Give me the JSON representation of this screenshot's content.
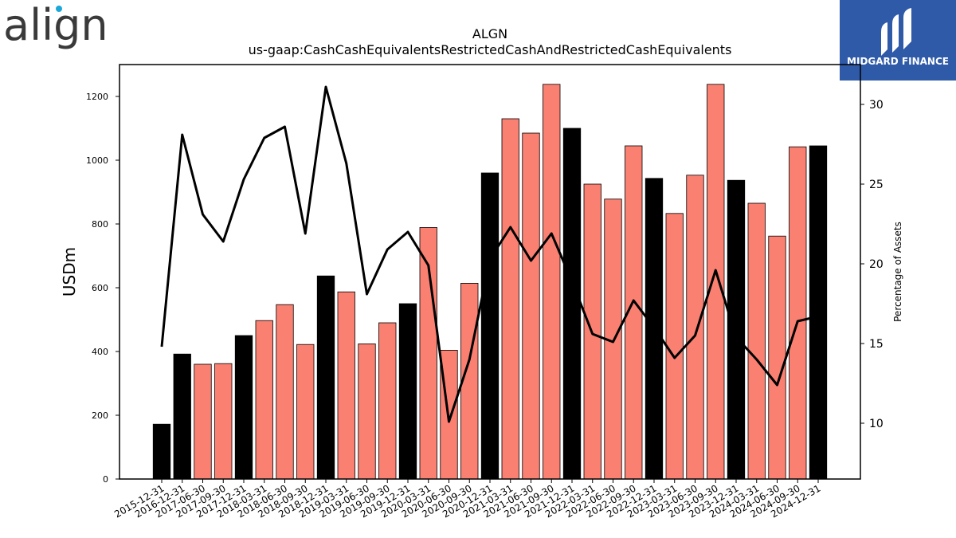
{
  "brand": {
    "logo_text": "align",
    "logo_text_color": "#3a3a3a",
    "logo_dot_color": "#1ba8d8"
  },
  "partner": {
    "name": "MIDGARD FINANCE",
    "background": "#2f5aa8"
  },
  "chart_data": {
    "type": "bar",
    "title": "ALGN",
    "subtitle": "us-gaap:CashCashEquivalentsRestrictedCashAndRestrictedCashEquivalents",
    "ylabel": "USDm",
    "y2label": "Percentage of Assets",
    "ylim": [
      0,
      1300
    ],
    "y2lim": [
      6.5,
      32.5
    ],
    "yticks": [
      0,
      200,
      400,
      600,
      800,
      1000,
      1200
    ],
    "y2ticks": [
      10,
      15,
      20,
      25,
      30
    ],
    "categories": [
      "2015-12-31",
      "2016-12-31",
      "2017-06-30",
      "2017-09-30",
      "2017-12-31",
      "2018-03-31",
      "2018-06-30",
      "2018-09-30",
      "2018-12-31",
      "2019-03-31",
      "2019-06-30",
      "2019-09-30",
      "2019-12-31",
      "2020-03-31",
      "2020-06-30",
      "2020-09-30",
      "2020-12-31",
      "2021-03-31",
      "2021-06-30",
      "2021-09-30",
      "2021-12-31",
      "2022-03-31",
      "2022-06-30",
      "2022-09-30",
      "2022-12-31",
      "2023-03-31",
      "2023-06-30",
      "2023-09-30",
      "2023-12-31",
      "2024-03-31",
      "2024-06-30",
      "2024-09-30",
      "2024-12-31"
    ],
    "series": [
      {
        "values": [
          172,
          392,
          360,
          362,
          450,
          497,
          547,
          422,
          637,
          587,
          424,
          490,
          550,
          789,
          404,
          614,
          960,
          1130,
          1085,
          1238,
          1100,
          925,
          878,
          1045,
          943,
          833,
          953,
          1238,
          937,
          865,
          762,
          1042,
          1045
        ]
      },
      {
        "type": "line",
        "axis": "right",
        "values": [
          14.8,
          28.1,
          23.1,
          21.4,
          25.3,
          27.9,
          28.6,
          21.9,
          31.1,
          26.3,
          18.1,
          20.9,
          22.0,
          19.9,
          10.1,
          14.0,
          20.3,
          22.3,
          20.2,
          21.9,
          18.9,
          15.6,
          15.1,
          17.7,
          16.0,
          14.1,
          15.5,
          19.6,
          15.4,
          14.0,
          12.4,
          16.4,
          16.7
        ]
      }
    ],
    "annual_flags": [
      true,
      true,
      false,
      false,
      true,
      false,
      false,
      false,
      true,
      false,
      false,
      false,
      true,
      false,
      false,
      false,
      true,
      false,
      false,
      false,
      true,
      false,
      false,
      false,
      true,
      false,
      false,
      false,
      true,
      false,
      false,
      false,
      true
    ],
    "colors": {
      "annual_bar": "#000000",
      "quarter_bar": "#fa8072",
      "line": "#000000"
    }
  }
}
